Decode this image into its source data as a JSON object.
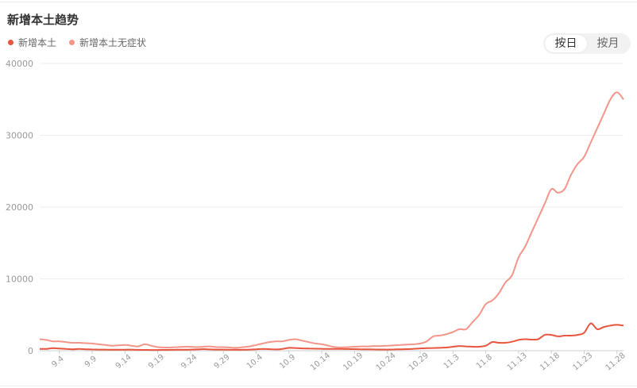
{
  "title": "新增本土趋势",
  "toggle": {
    "day_label": "按日",
    "month_label": "按月",
    "selected": "day"
  },
  "colors": {
    "confirmed": "#e8553f",
    "asymptomatic": "#f4958a",
    "grid": "#eeeeee",
    "axis_text": "#999999"
  },
  "chart_data": {
    "type": "line",
    "title": "",
    "xlabel": "",
    "ylabel": "",
    "ylim": [
      0,
      40000
    ],
    "yticks": [
      0,
      10000,
      20000,
      30000,
      40000
    ],
    "legend_position": "top-left",
    "grid": true,
    "x": [
      "9.1",
      "9.2",
      "9.3",
      "9.4",
      "9.5",
      "9.6",
      "9.7",
      "9.8",
      "9.9",
      "9.10",
      "9.11",
      "9.12",
      "9.13",
      "9.14",
      "9.15",
      "9.16",
      "9.17",
      "9.18",
      "9.19",
      "9.20",
      "9.21",
      "9.22",
      "9.23",
      "9.24",
      "9.25",
      "9.26",
      "9.27",
      "9.28",
      "9.29",
      "9.30",
      "10.1",
      "10.2",
      "10.3",
      "10.4",
      "10.5",
      "10.6",
      "10.7",
      "10.8",
      "10.9",
      "10.10",
      "10.11",
      "10.12",
      "10.13",
      "10.14",
      "10.15",
      "10.16",
      "10.17",
      "10.18",
      "10.19",
      "10.20",
      "10.21",
      "10.22",
      "10.23",
      "10.24",
      "10.25",
      "10.26",
      "10.27",
      "10.28",
      "10.29",
      "10.30",
      "10.31",
      "11.1",
      "11.2",
      "11.3",
      "11.4",
      "11.5",
      "11.6",
      "11.7",
      "11.8",
      "11.9",
      "11.10",
      "11.11",
      "11.12",
      "11.13",
      "11.14",
      "11.15",
      "11.16",
      "11.17",
      "11.18",
      "11.19",
      "11.20",
      "11.21",
      "11.22",
      "11.23",
      "11.24",
      "11.25",
      "11.26",
      "11.27",
      "11.28",
      "11.29"
    ],
    "tick_labels": [
      "9.4",
      "9.9",
      "9.14",
      "9.19",
      "9.24",
      "9.29",
      "10.4",
      "10.9",
      "10.14",
      "10.19",
      "10.24",
      "10.29",
      "11.3",
      "11.8",
      "11.13",
      "11.18",
      "11.23",
      "11.28"
    ],
    "series": [
      {
        "name": "新增本土",
        "color": "#e8553f",
        "values": [
          250,
          250,
          350,
          300,
          250,
          200,
          250,
          200,
          180,
          160,
          150,
          140,
          130,
          140,
          150,
          120,
          110,
          100,
          100,
          110,
          120,
          130,
          140,
          150,
          180,
          220,
          180,
          160,
          150,
          140,
          130,
          130,
          150,
          200,
          250,
          220,
          180,
          250,
          400,
          380,
          320,
          300,
          280,
          260,
          240,
          250,
          250,
          230,
          220,
          200,
          190,
          180,
          170,
          160,
          180,
          200,
          220,
          260,
          320,
          350,
          380,
          400,
          450,
          550,
          650,
          600,
          550,
          550,
          700,
          1200,
          1100,
          1100,
          1250,
          1500,
          1600,
          1550,
          1600,
          2200,
          2200,
          2000,
          2100,
          2100,
          2200,
          2500,
          3800,
          3000,
          3300,
          3500,
          3600,
          3500
        ]
      },
      {
        "name": "新增本土无症状",
        "color": "#f4958a",
        "values": [
          1600,
          1500,
          1300,
          1300,
          1200,
          1100,
          1100,
          1050,
          1000,
          900,
          800,
          700,
          750,
          800,
          700,
          600,
          900,
          700,
          500,
          450,
          450,
          500,
          550,
          550,
          500,
          550,
          600,
          500,
          500,
          450,
          400,
          500,
          600,
          800,
          1000,
          1200,
          1300,
          1300,
          1500,
          1600,
          1400,
          1200,
          1000,
          900,
          700,
          500,
          450,
          500,
          550,
          600,
          600,
          650,
          650,
          700,
          750,
          800,
          850,
          900,
          1000,
          1300,
          2000,
          2100,
          2300,
          2600,
          3000,
          3000,
          4000,
          5000,
          6500,
          7000,
          8000,
          9500,
          10500,
          13000,
          14500,
          16500,
          18500,
          20500,
          22500,
          22000,
          22500,
          24500,
          26000,
          27000,
          29000,
          31000,
          33000,
          35000,
          36000,
          35000
        ]
      }
    ]
  }
}
